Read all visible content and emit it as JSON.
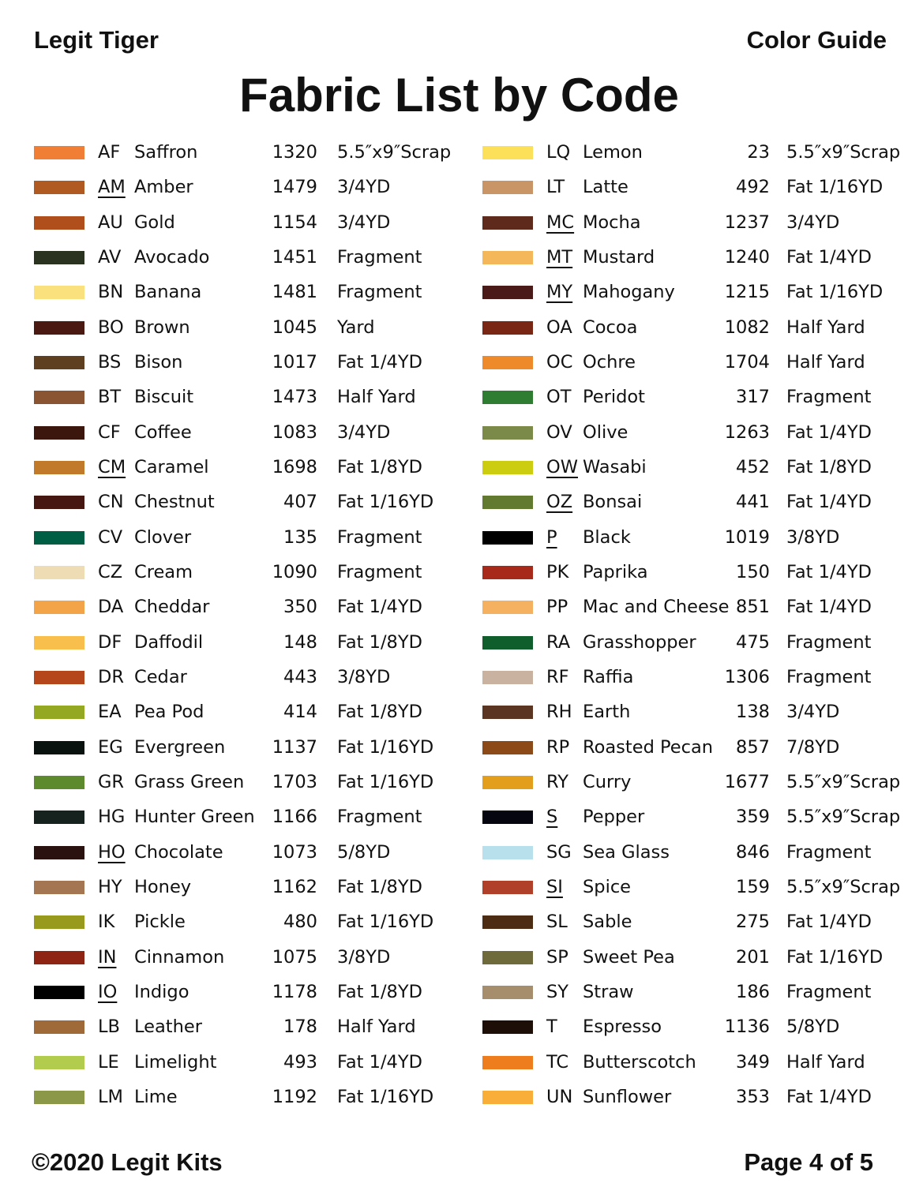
{
  "header": {
    "brand": "Legit Tiger",
    "section": "Color Guide",
    "title": "Fabric List by Code"
  },
  "footer": {
    "copyright": "©2020 Legit Kits",
    "page": "Page 4 of 5"
  },
  "columns": [
    [
      {
        "code": "AF",
        "name": "Saffron",
        "qty": "1320",
        "size": "5.5″x9″Scrap",
        "color": "#f07e34",
        "underline": false
      },
      {
        "code": "AM",
        "name": "Amber",
        "qty": "1479",
        "size": "3/4YD",
        "color": "#b05a22",
        "underline": true
      },
      {
        "code": "AU",
        "name": "Gold",
        "qty": "1154",
        "size": "3/4YD",
        "color": "#b04e1c",
        "underline": false
      },
      {
        "code": "AV",
        "name": "Avocado",
        "qty": "1451",
        "size": "Fragment",
        "color": "#2a3320",
        "underline": false
      },
      {
        "code": "BN",
        "name": "Banana",
        "qty": "1481",
        "size": "Fragment",
        "color": "#fbe07e",
        "underline": false
      },
      {
        "code": "BO",
        "name": "Brown",
        "qty": "1045",
        "size": "Yard",
        "color": "#4a1a12",
        "underline": false
      },
      {
        "code": "BS",
        "name": "Bison",
        "qty": "1017",
        "size": "Fat 1/4YD",
        "color": "#5e4020",
        "underline": false
      },
      {
        "code": "BT",
        "name": "Biscuit",
        "qty": "1473",
        "size": "Half Yard",
        "color": "#8a5432",
        "underline": false
      },
      {
        "code": "CF",
        "name": "Coffee",
        "qty": "1083",
        "size": "3/4YD",
        "color": "#3a160c",
        "underline": false
      },
      {
        "code": "CM",
        "name": "Caramel",
        "qty": "1698",
        "size": "Fat 1/8YD",
        "color": "#c07a2a",
        "underline": true
      },
      {
        "code": "CN",
        "name": "Chestnut",
        "qty": "407",
        "size": "Fat 1/16YD",
        "color": "#461610",
        "underline": false
      },
      {
        "code": "CV",
        "name": "Clover",
        "qty": "135",
        "size": "Fragment",
        "color": "#005e44",
        "underline": false
      },
      {
        "code": "CZ",
        "name": "Cream",
        "qty": "1090",
        "size": "Fragment",
        "color": "#eedcb4",
        "underline": false
      },
      {
        "code": "DA",
        "name": "Cheddar",
        "qty": "350",
        "size": "Fat 1/4YD",
        "color": "#f3a448",
        "underline": false
      },
      {
        "code": "DF",
        "name": "Daffodil",
        "qty": "148",
        "size": "Fat 1/8YD",
        "color": "#f9bf4c",
        "underline": false
      },
      {
        "code": "DR",
        "name": "Cedar",
        "qty": "443",
        "size": "3/8YD",
        "color": "#b5461c",
        "underline": false
      },
      {
        "code": "EA",
        "name": "Pea Pod",
        "qty": "414",
        "size": "Fat 1/8YD",
        "color": "#95a822",
        "underline": false
      },
      {
        "code": "EG",
        "name": "Evergreen",
        "qty": "1137",
        "size": "Fat 1/16YD",
        "color": "#0a1210",
        "underline": false
      },
      {
        "code": "GR",
        "name": "Grass Green",
        "qty": "1703",
        "size": "Fat 1/16YD",
        "color": "#5e8a2e",
        "underline": false
      },
      {
        "code": "HG",
        "name": "Hunter Green",
        "qty": "1166",
        "size": "Fragment",
        "color": "#16221e",
        "underline": false
      },
      {
        "code": "HO",
        "name": "Chocolate",
        "qty": "1073",
        "size": "5/8YD",
        "color": "#2a1210",
        "underline": true
      },
      {
        "code": "HY",
        "name": "Honey",
        "qty": "1162",
        "size": "Fat 1/8YD",
        "color": "#a47652",
        "underline": false
      },
      {
        "code": "IK",
        "name": "Pickle",
        "qty": "480",
        "size": "Fat 1/16YD",
        "color": "#989a1e",
        "underline": false
      },
      {
        "code": "IN",
        "name": "Cinnamon",
        "qty": "1075",
        "size": "3/8YD",
        "color": "#8e2414",
        "underline": true
      },
      {
        "code": "IO",
        "name": "Indigo",
        "qty": "1178",
        "size": "Fat 1/8YD",
        "color": "#000000",
        "underline": true
      },
      {
        "code": "LB",
        "name": "Leather",
        "qty": "178",
        "size": "Half Yard",
        "color": "#a06a38",
        "underline": false
      },
      {
        "code": "LE",
        "name": "Limelight",
        "qty": "493",
        "size": "Fat 1/4YD",
        "color": "#b2cc4e",
        "underline": false
      },
      {
        "code": "LM",
        "name": "Lime",
        "qty": "1192",
        "size": "Fat 1/16YD",
        "color": "#8a9848",
        "underline": false
      }
    ],
    [
      {
        "code": "LQ",
        "name": "Lemon",
        "qty": "23",
        "size": "5.5″x9″Scrap",
        "color": "#fde05a",
        "underline": false
      },
      {
        "code": "LT",
        "name": "Latte",
        "qty": "492",
        "size": "Fat 1/16YD",
        "color": "#c99466",
        "underline": false
      },
      {
        "code": "MC",
        "name": "Mocha",
        "qty": "1237",
        "size": "3/4YD",
        "color": "#5e2a1c",
        "underline": true
      },
      {
        "code": "MT",
        "name": "Mustard",
        "qty": "1240",
        "size": "Fat 1/4YD",
        "color": "#f4b75a",
        "underline": true
      },
      {
        "code": "MY",
        "name": "Mahogany",
        "qty": "1215",
        "size": "Fat 1/16YD",
        "color": "#4a1a18",
        "underline": true
      },
      {
        "code": "OA",
        "name": "Cocoa",
        "qty": "1082",
        "size": "Half Yard",
        "color": "#7a2614",
        "underline": false
      },
      {
        "code": "OC",
        "name": "Ochre",
        "qty": "1704",
        "size": "Half Yard",
        "color": "#ef8a2a",
        "underline": false
      },
      {
        "code": "OT",
        "name": "Peridot",
        "qty": "317",
        "size": "Fragment",
        "color": "#2e7d32",
        "underline": false
      },
      {
        "code": "OV",
        "name": "Olive",
        "qty": "1263",
        "size": "Fat 1/4YD",
        "color": "#7b8a48",
        "underline": false
      },
      {
        "code": "OW",
        "name": "Wasabi",
        "qty": "452",
        "size": "Fat 1/8YD",
        "color": "#cccc10",
        "underline": true
      },
      {
        "code": "OZ",
        "name": "Bonsai",
        "qty": "441",
        "size": "Fat 1/4YD",
        "color": "#617a30",
        "underline": true
      },
      {
        "code": "P",
        "name": "Black",
        "qty": "1019",
        "size": "3/8YD",
        "color": "#000000",
        "underline": true
      },
      {
        "code": "PK",
        "name": "Paprika",
        "qty": "150",
        "size": "Fat 1/4YD",
        "color": "#a6291a",
        "underline": false
      },
      {
        "code": "PP",
        "name": "Mac and Cheese",
        "qty": "851",
        "size": "Fat 1/4YD",
        "color": "#f5b060",
        "underline": false
      },
      {
        "code": "RA",
        "name": "Grasshopper",
        "qty": "475",
        "size": "Fragment",
        "color": "#0f5e2c",
        "underline": false
      },
      {
        "code": "RF",
        "name": "Raffia",
        "qty": "1306",
        "size": "Fragment",
        "color": "#c9b3a0",
        "underline": false
      },
      {
        "code": "RH",
        "name": "Earth",
        "qty": "138",
        "size": "3/4YD",
        "color": "#5c3522",
        "underline": false
      },
      {
        "code": "RP",
        "name": "Roasted Pecan",
        "qty": "857",
        "size": "7/8YD",
        "color": "#8c4a18",
        "underline": false
      },
      {
        "code": "RY",
        "name": "Curry",
        "qty": "1677",
        "size": "5.5″x9″Scrap",
        "color": "#e39e1c",
        "underline": false
      },
      {
        "code": "S",
        "name": "Pepper",
        "qty": "359",
        "size": "5.5″x9″Scrap",
        "color": "#05050f",
        "underline": true
      },
      {
        "code": "SG",
        "name": "Sea Glass",
        "qty": "846",
        "size": "Fragment",
        "color": "#b8e0ec",
        "underline": false
      },
      {
        "code": "SI",
        "name": "Spice",
        "qty": "159",
        "size": "5.5″x9″Scrap",
        "color": "#b0402a",
        "underline": true
      },
      {
        "code": "SL",
        "name": "Sable",
        "qty": "275",
        "size": "Fat 1/4YD",
        "color": "#4d2c14",
        "underline": false
      },
      {
        "code": "SP",
        "name": "Sweet Pea",
        "qty": "201",
        "size": "Fat 1/16YD",
        "color": "#6e6a3c",
        "underline": false
      },
      {
        "code": "SY",
        "name": "Straw",
        "qty": "186",
        "size": "Fragment",
        "color": "#a68e6c",
        "underline": false
      },
      {
        "code": "T",
        "name": "Espresso",
        "qty": "1136",
        "size": "5/8YD",
        "color": "#1e0e08",
        "underline": false
      },
      {
        "code": "TC",
        "name": "Butterscotch",
        "qty": "349",
        "size": "Half Yard",
        "color": "#ee7d1e",
        "underline": false
      },
      {
        "code": "UN",
        "name": "Sunflower",
        "qty": "353",
        "size": "Fat 1/4YD",
        "color": "#f8ae38",
        "underline": false
      }
    ]
  ]
}
